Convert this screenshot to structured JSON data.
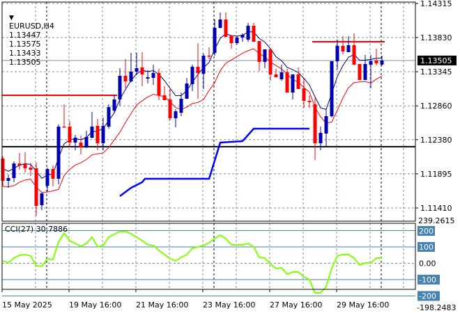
{
  "header": {
    "symbol": "EURUSD,H4",
    "open": "1.13447",
    "high": "1.13575",
    "low": "1.13433",
    "close": "1.13505"
  },
  "price_axis": {
    "labels": [
      "1.14315",
      "1.13830",
      "1.13345",
      "1.12860",
      "1.12380",
      "1.11895",
      "1.11410"
    ],
    "current_price": "1.13505"
  },
  "cci": {
    "label": "CCI(27) 30.7886",
    "max_label": "239.2615",
    "min_label": "-198.2483",
    "levels": [
      "200",
      "100",
      "0.00",
      "-100",
      "-200"
    ],
    "values": [
      15,
      2,
      32,
      49,
      53,
      45,
      -15,
      -19,
      28,
      23,
      130,
      185,
      138,
      121,
      104,
      121,
      160,
      100,
      109,
      160,
      177,
      194,
      194,
      181,
      160,
      138,
      113,
      109,
      79,
      53,
      28,
      15,
      36,
      53,
      92,
      100,
      109,
      126,
      151,
      172,
      151,
      113,
      113,
      113,
      121,
      100,
      36,
      32,
      -6,
      -32,
      -28,
      -66,
      -53,
      -53,
      -83,
      -100,
      -181,
      -181,
      -143,
      -32,
      45,
      53,
      53,
      32,
      -11,
      2,
      2,
      32,
      30.79
    ]
  },
  "time_axis": {
    "labels": [
      "15 May 2025",
      "19 May 16:00",
      "21 May 16:00",
      "23 May 16:00",
      "27 May 16:00",
      "29 May 16:00"
    ]
  },
  "colors": {
    "bull": "#0000b0",
    "bear": "#ff0000",
    "ma_fast": "#000080",
    "ma_slow": "#ff0000",
    "support_line": "#0000ff",
    "cci_line": "#80ff00",
    "cci_level": "#4682b4",
    "level_label_bg": "#4682b4"
  },
  "chart_data": {
    "type": "candlestick",
    "timeframe": "H4",
    "ylim": [
      1.113,
      1.1436
    ],
    "ohlc": [
      [
        1.12111,
        1.12141,
        1.11716,
        1.11795
      ],
      [
        1.11795,
        1.11884,
        1.11696,
        1.11835
      ],
      [
        1.11835,
        1.12072,
        1.11775,
        1.12042
      ],
      [
        1.12042,
        1.1219,
        1.11953,
        1.12013
      ],
      [
        1.12032,
        1.122,
        1.11914,
        1.11973
      ],
      [
        1.11983,
        1.12052,
        1.11864,
        1.11953
      ],
      [
        1.11973,
        1.12052,
        1.11301,
        1.11439
      ],
      [
        1.11449,
        1.11637,
        1.1138,
        1.11617
      ],
      [
        1.11726,
        1.11983,
        1.11647,
        1.11963
      ],
      [
        1.11963,
        1.12013,
        1.11716,
        1.11825
      ],
      [
        1.11825,
        1.12595,
        1.11746,
        1.12566
      ],
      [
        1.12566,
        1.12882,
        1.12556,
        1.12556
      ],
      [
        1.12566,
        1.12645,
        1.1227,
        1.12339
      ],
      [
        1.12339,
        1.12447,
        1.1223,
        1.12408
      ],
      [
        1.12339,
        1.12438,
        1.12171,
        1.1227
      ],
      [
        1.1227,
        1.12507,
        1.1226,
        1.12418
      ],
      [
        1.12408,
        1.12773,
        1.12398,
        1.12566
      ],
      [
        1.12576,
        1.12674,
        1.1223,
        1.12329
      ],
      [
        1.12329,
        1.12694,
        1.1223,
        1.12576
      ],
      [
        1.12566,
        1.12882,
        1.12536,
        1.12842
      ],
      [
        1.12793,
        1.1302,
        1.12763,
        1.12951
      ],
      [
        1.12951,
        1.13396,
        1.12862,
        1.13287
      ],
      [
        1.13287,
        1.13524,
        1.13109,
        1.13208
      ],
      [
        1.13208,
        1.13613,
        1.13198,
        1.13346
      ],
      [
        1.13346,
        1.13613,
        1.13297,
        1.13396
      ],
      [
        1.13406,
        1.13623,
        1.13139,
        1.13307
      ],
      [
        1.13248,
        1.13366,
        1.13178,
        1.13267
      ],
      [
        1.13258,
        1.13445,
        1.13159,
        1.13327
      ],
      [
        1.13327,
        1.13386,
        1.12941,
        1.1301
      ],
      [
        1.1301,
        1.13139,
        1.12941,
        1.12941
      ],
      [
        1.12951,
        1.13099,
        1.12655,
        1.12684
      ],
      [
        1.12684,
        1.12813,
        1.12556,
        1.12783
      ],
      [
        1.12763,
        1.1305,
        1.12714,
        1.12961
      ],
      [
        1.12961,
        1.13258,
        1.12961,
        1.13178
      ],
      [
        1.13169,
        1.13445,
        1.1307,
        1.13416
      ],
      [
        1.13416,
        1.13751,
        1.12961,
        1.13327
      ],
      [
        1.13317,
        1.13603,
        1.13099,
        1.13574
      ],
      [
        1.13574,
        1.13692,
        1.13524,
        1.13564
      ],
      [
        1.13613,
        1.14087,
        1.13574,
        1.13969
      ],
      [
        1.13969,
        1.14186,
        1.13959,
        1.14087
      ],
      [
        1.14087,
        1.14186,
        1.1384,
        1.1384
      ],
      [
        1.1386,
        1.1386,
        1.13672,
        1.13751
      ],
      [
        1.13751,
        1.1385,
        1.13732,
        1.13831
      ],
      [
        1.13831,
        1.1389,
        1.13771,
        1.1387
      ],
      [
        1.13801,
        1.14038,
        1.13771,
        1.13998
      ],
      [
        1.13998,
        1.14038,
        1.13771,
        1.13771
      ],
      [
        1.13781,
        1.13781,
        1.13356,
        1.13485
      ],
      [
        1.13485,
        1.13663,
        1.13396,
        1.13663
      ],
      [
        1.13663,
        1.13663,
        1.13218,
        1.13307
      ],
      [
        1.13307,
        1.13386,
        1.13267,
        1.13267
      ],
      [
        1.13238,
        1.13445,
        1.13218,
        1.13337
      ],
      [
        1.13337,
        1.13386,
        1.1305,
        1.1305
      ],
      [
        1.1305,
        1.13307,
        1.12951,
        1.13307
      ],
      [
        1.13307,
        1.13406,
        1.13099,
        1.13099
      ],
      [
        1.13109,
        1.13248,
        1.12833,
        1.12931
      ],
      [
        1.12931,
        1.1301,
        1.12833,
        1.12912
      ],
      [
        1.12882,
        1.12971,
        1.12092,
        1.12329
      ],
      [
        1.12329,
        1.12566,
        1.1223,
        1.12477
      ],
      [
        1.12467,
        1.12823,
        1.12289,
        1.12714
      ],
      [
        1.12714,
        1.13495,
        1.12694,
        1.13495
      ],
      [
        1.13495,
        1.13801,
        1.13376,
        1.13712
      ],
      [
        1.13712,
        1.1385,
        1.13593,
        1.13633
      ],
      [
        1.13623,
        1.1385,
        1.13623,
        1.13722
      ],
      [
        1.13722,
        1.1389,
        1.13445,
        1.13445
      ],
      [
        1.13455,
        1.13455,
        1.13228,
        1.13228
      ],
      [
        1.13228,
        1.13583,
        1.13228,
        1.13455
      ],
      [
        1.13445,
        1.13583,
        1.13109,
        1.13495
      ],
      [
        1.13504,
        1.13672,
        1.13435,
        1.13465
      ],
      [
        1.13447,
        1.13575,
        1.13433,
        1.13505
      ]
    ],
    "horizontal_lines": [
      {
        "name": "resistance-left",
        "price": 1.1301,
        "from_bar": 0,
        "to_bar": 20,
        "color": "#ff0000"
      },
      {
        "name": "resistance-right",
        "price": 1.13771,
        "from_bar": 56,
        "to_bar": 68,
        "color": "#ff0000"
      },
      {
        "name": "support-black",
        "price": 1.1228,
        "from_bar": null,
        "to_bar": null,
        "color": "#000000"
      }
    ],
    "support_steps": [
      [
        21,
        1.11578
      ],
      [
        23,
        1.11696
      ],
      [
        25,
        1.11775
      ],
      [
        25.5,
        1.11825
      ],
      [
        37,
        1.11825
      ],
      [
        39,
        1.12339
      ],
      [
        43,
        1.12359
      ],
      [
        45,
        1.12536
      ],
      [
        55,
        1.12536
      ]
    ]
  }
}
